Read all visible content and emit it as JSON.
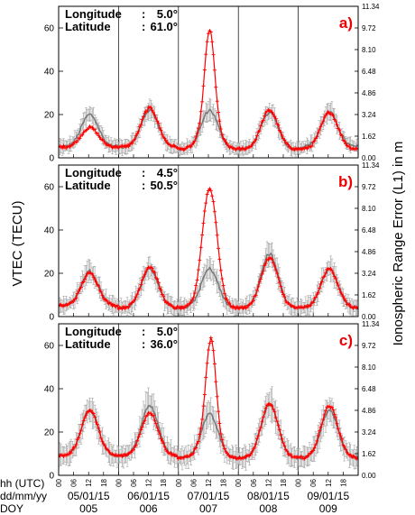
{
  "chart_data": {
    "type": "line",
    "ylabel_left": "VTEC (TECU)",
    "ylabel_right": "Ionospheric Range Error (L1) in m",
    "ylim": [
      0,
      70
    ],
    "yticks": [
      0,
      20,
      40,
      60
    ],
    "right_ticks": [
      "0.00",
      "1.62",
      "3.24",
      "4.86",
      "6.48",
      "8.10",
      "9.72",
      "11.34"
    ],
    "right_tick_values": [
      0,
      10,
      20,
      30,
      40,
      50,
      60,
      70
    ],
    "hour_ticks": [
      "00",
      "06",
      "12",
      "18"
    ],
    "row_labels": {
      "hours": "hh (UTC)",
      "dates": "dd/mm/yy",
      "doy": "DOY"
    },
    "days": [
      {
        "date": "05/01/15",
        "doy": "005"
      },
      {
        "date": "06/01/15",
        "doy": "006"
      },
      {
        "date": "07/01/15",
        "doy": "007"
      },
      {
        "date": "08/01/15",
        "doy": "008"
      },
      {
        "date": "09/01/15",
        "doy": "009"
      }
    ],
    "x_unit": "hours since 05/01/15 00 UTC",
    "panels": [
      {
        "label": "a)",
        "lon_label": "Longitude",
        "lon_value": "5.0°",
        "lat_label": "Latitude",
        "lat_value": "61.0°",
        "red_base": [
          5,
          5,
          4,
          4,
          4
        ],
        "red_peak": [
          14,
          23,
          21,
          22,
          21
        ],
        "red_spike": {
          "x": 60.5,
          "peak": 59,
          "width": 1.8
        },
        "gray_base": [
          5,
          5,
          4,
          4,
          5
        ],
        "gray_peak": [
          20,
          22,
          22,
          21,
          21
        ],
        "error_amplitude": 5
      },
      {
        "label": "b)",
        "lon_label": "Longitude",
        "lon_value": "4.5°",
        "lat_label": "Latitude",
        "lat_value": "50.5°",
        "red_base": [
          5,
          4,
          4,
          4,
          4
        ],
        "red_peak": [
          20,
          23,
          24,
          27,
          22
        ],
        "red_spike": {
          "x": 60.5,
          "peak": 59,
          "width": 2.5
        },
        "gray_base": [
          5,
          4,
          4,
          4,
          4
        ],
        "gray_peak": [
          21,
          22,
          22,
          29,
          22
        ],
        "error_amplitude": 6
      },
      {
        "label": "c)",
        "lon_label": "Longitude",
        "lon_value": "5.0°",
        "lat_label": "Latitude",
        "lat_value": "36.0°",
        "red_base": [
          9,
          9,
          8,
          8,
          8
        ],
        "red_peak": [
          30,
          29,
          25,
          33,
          32
        ],
        "red_spike": {
          "x": 61,
          "peak": 63,
          "width": 1.8
        },
        "gray_base": [
          9,
          9,
          8,
          8,
          8
        ],
        "gray_peak": [
          30,
          32,
          28,
          33,
          30
        ],
        "error_amplitude": 7
      }
    ]
  }
}
